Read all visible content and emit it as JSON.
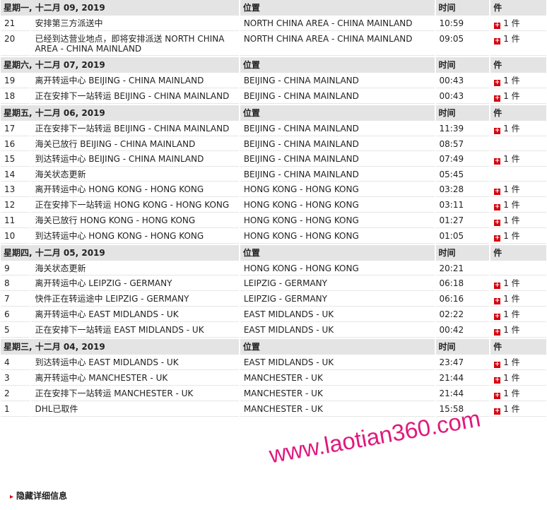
{
  "groups": [
    {
      "date": "星期一, 十二月 09, 2019",
      "location_header": "位置",
      "time_header": "时间",
      "pieces_header": "件",
      "events": [
        {
          "num": "21",
          "desc": "安排第三方派送中",
          "location": "NORTH CHINA AREA - CHINA MAINLAND",
          "time": "10:59",
          "pieces": "1 件"
        },
        {
          "num": "20",
          "desc": "已经到达营业地点，即将安排派送 NORTH CHINA AREA - CHINA MAINLAND",
          "location": "NORTH CHINA AREA - CHINA MAINLAND",
          "time": "09:05",
          "pieces": "1 件"
        }
      ]
    },
    {
      "date": "星期六, 十二月 07, 2019",
      "location_header": "位置",
      "time_header": "时间",
      "pieces_header": "件",
      "events": [
        {
          "num": "19",
          "desc": "离开转运中心 BEIJING - CHINA MAINLAND",
          "location": "BEIJING - CHINA MAINLAND",
          "time": "00:43",
          "pieces": "1 件"
        },
        {
          "num": "18",
          "desc": "正在安排下一站转运 BEIJING - CHINA MAINLAND",
          "location": "BEIJING - CHINA MAINLAND",
          "time": "00:43",
          "pieces": "1 件"
        }
      ]
    },
    {
      "date": "星期五, 十二月 06, 2019",
      "location_header": "位置",
      "time_header": "时间",
      "pieces_header": "件",
      "events": [
        {
          "num": "17",
          "desc": "正在安排下一站转运 BEIJING - CHINA MAINLAND",
          "location": "BEIJING - CHINA MAINLAND",
          "time": "11:39",
          "pieces": "1 件"
        },
        {
          "num": "16",
          "desc": "海关已放行 BEIJING - CHINA MAINLAND",
          "location": "BEIJING - CHINA MAINLAND",
          "time": "08:57",
          "pieces": ""
        },
        {
          "num": "15",
          "desc": "到达转运中心 BEIJING - CHINA MAINLAND",
          "location": "BEIJING - CHINA MAINLAND",
          "time": "07:49",
          "pieces": "1 件"
        },
        {
          "num": "14",
          "desc": "海关状态更新",
          "location": "BEIJING - CHINA MAINLAND",
          "time": "05:45",
          "pieces": ""
        },
        {
          "num": "13",
          "desc": "离开转运中心 HONG KONG - HONG KONG",
          "location": "HONG KONG - HONG KONG",
          "time": "03:28",
          "pieces": "1 件"
        },
        {
          "num": "12",
          "desc": "正在安排下一站转运 HONG KONG - HONG KONG",
          "location": "HONG KONG - HONG KONG",
          "time": "03:11",
          "pieces": "1 件"
        },
        {
          "num": "11",
          "desc": "海关已放行 HONG KONG - HONG KONG",
          "location": "HONG KONG - HONG KONG",
          "time": "01:27",
          "pieces": "1 件"
        },
        {
          "num": "10",
          "desc": "到达转运中心 HONG KONG - HONG KONG",
          "location": "HONG KONG - HONG KONG",
          "time": "01:05",
          "pieces": "1 件"
        }
      ]
    },
    {
      "date": "星期四, 十二月 05, 2019",
      "location_header": "位置",
      "time_header": "时间",
      "pieces_header": "件",
      "events": [
        {
          "num": "9",
          "desc": "海关状态更新",
          "location": "HONG KONG - HONG KONG",
          "time": "20:21",
          "pieces": ""
        },
        {
          "num": "8",
          "desc": "离开转运中心 LEIPZIG - GERMANY",
          "location": "LEIPZIG - GERMANY",
          "time": "06:18",
          "pieces": "1 件"
        },
        {
          "num": "7",
          "desc": "快件正在转运途中 LEIPZIG - GERMANY",
          "location": "LEIPZIG - GERMANY",
          "time": "06:16",
          "pieces": "1 件"
        },
        {
          "num": "6",
          "desc": "离开转运中心 EAST MIDLANDS - UK",
          "location": "EAST MIDLANDS - UK",
          "time": "02:22",
          "pieces": "1 件"
        },
        {
          "num": "5",
          "desc": "正在安排下一站转运 EAST MIDLANDS - UK",
          "location": "EAST MIDLANDS - UK",
          "time": "00:42",
          "pieces": "1 件"
        }
      ]
    },
    {
      "date": "星期三, 十二月 04, 2019",
      "location_header": "位置",
      "time_header": "时间",
      "pieces_header": "件",
      "events": [
        {
          "num": "4",
          "desc": "到达转运中心 EAST MIDLANDS - UK",
          "location": "EAST MIDLANDS - UK",
          "time": "23:47",
          "pieces": "1 件"
        },
        {
          "num": "3",
          "desc": "离开转运中心 MANCHESTER - UK",
          "location": "MANCHESTER - UK",
          "time": "21:44",
          "pieces": "1 件"
        },
        {
          "num": "2",
          "desc": "正在安排下一站转运 MANCHESTER - UK",
          "location": "MANCHESTER - UK",
          "time": "21:44",
          "pieces": "1 件"
        },
        {
          "num": "1",
          "desc": "DHL已取件",
          "location": "MANCHESTER - UK",
          "time": "15:58",
          "pieces": "1 件"
        }
      ]
    }
  ],
  "footer": {
    "hide_details_label": "隐藏详细信息",
    "arrow_icon": "chevron-right-icon"
  },
  "watermark": {
    "text": "www.laotian360.com"
  },
  "colors": {
    "accent": "#d40511",
    "header_bg": "#e4e4e4",
    "watermark": "#e0197d"
  }
}
